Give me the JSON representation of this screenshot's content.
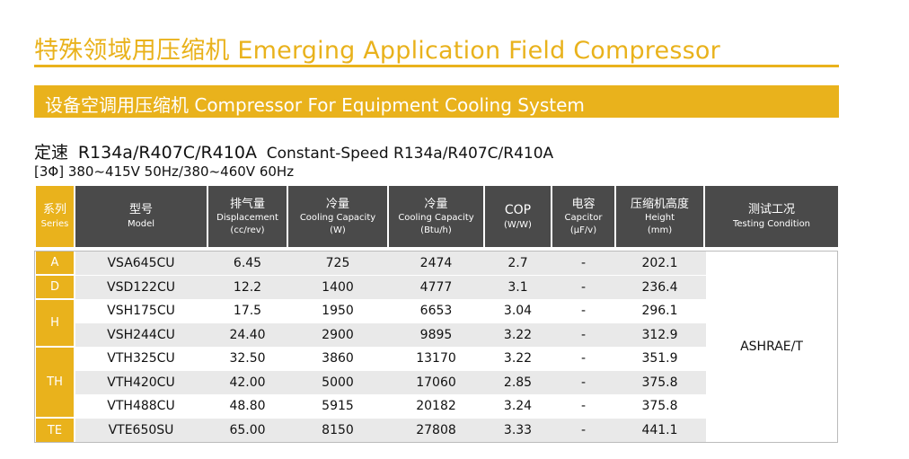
{
  "page": {
    "title": "特殊领域用压缩机 Emerging Application Field Compressor",
    "section": "设备空调用压缩机  Compressor For Equipment Cooling System",
    "spec_zh": "定速",
    "spec_refrigerants": "R134a/R407C/R410A",
    "spec_en": "Constant-Speed R134a/R407C/R410A",
    "power": "[3Φ] 380~415V 50Hz/380~460V 60Hz"
  },
  "headers": {
    "series": {
      "zh": "系列",
      "en": "Series"
    },
    "model": {
      "zh": "型号",
      "en": "Model"
    },
    "displacement": {
      "zh": "排气量",
      "en": "Displacement",
      "unit": "(cc/rev)"
    },
    "capacity_w": {
      "zh": "冷量",
      "en": "Cooling Capacity",
      "unit": "(W)"
    },
    "capacity_btu": {
      "zh": "冷量",
      "en": "Cooling Capacity",
      "unit": "(Btu/h)"
    },
    "cop": {
      "zh": "COP",
      "unit": "(W/W)"
    },
    "capacitor": {
      "zh": "电容",
      "en": "Capcitor",
      "unit": "(μF/v)"
    },
    "height": {
      "zh": "压缩机高度",
      "en": "Height",
      "unit": "(mm)"
    },
    "condition": {
      "zh": "测试工况",
      "en": "Testing Condition"
    }
  },
  "series": [
    "A",
    "D",
    "H",
    "TH",
    "TE"
  ],
  "rows": [
    {
      "model": "VSA645CU",
      "displacement": "6.45",
      "capacity_w": "725",
      "capacity_btu": "2474",
      "cop": "2.7",
      "capacitor": "-",
      "height": "202.1"
    },
    {
      "model": "VSD122CU",
      "displacement": "12.2",
      "capacity_w": "1400",
      "capacity_btu": "4777",
      "cop": "3.1",
      "capacitor": "-",
      "height": "236.4"
    },
    {
      "model": "VSH175CU",
      "displacement": "17.5",
      "capacity_w": "1950",
      "capacity_btu": "6653",
      "cop": "3.04",
      "capacitor": "-",
      "height": "296.1"
    },
    {
      "model": "VSH244CU",
      "displacement": "24.40",
      "capacity_w": "2900",
      "capacity_btu": "9895",
      "cop": "3.22",
      "capacitor": "-",
      "height": "312.9"
    },
    {
      "model": "VTH325CU",
      "displacement": "32.50",
      "capacity_w": "3860",
      "capacity_btu": "13170",
      "cop": "3.22",
      "capacitor": "-",
      "height": "351.9"
    },
    {
      "model": "VTH420CU",
      "displacement": "42.00",
      "capacity_w": "5000",
      "capacity_btu": "17060",
      "cop": "2.85",
      "capacitor": "-",
      "height": "375.8"
    },
    {
      "model": "VTH488CU",
      "displacement": "48.80",
      "capacity_w": "5915",
      "capacity_btu": "20182",
      "cop": "3.24",
      "capacitor": "-",
      "height": "375.8"
    },
    {
      "model": "VTE650SU",
      "displacement": "65.00",
      "capacity_w": "8150",
      "capacity_btu": "27808",
      "cop": "3.33",
      "capacitor": "-",
      "height": "441.1"
    }
  ],
  "condition": "ASHRAE/T",
  "colors": {
    "accent": "#e9b21c",
    "header_bg": "#4a4a4a",
    "row_shade": "#e9e9e9"
  }
}
